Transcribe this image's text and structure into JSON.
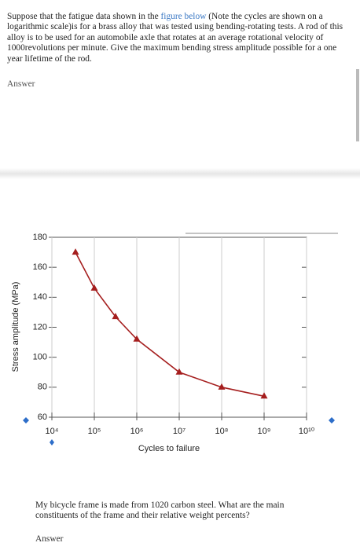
{
  "question1": {
    "before": "Suppose that the fatigue data shown in the ",
    "link": "figure below",
    "after": " (Note the cycles are shown on a logarithmic scale)is for a brass alloy that was tested using bending-rotating tests.  A rod of this alloy is to be used for an automobile axle that rotates at an average rotational velocity of 1000revolutions per minute.  Give the maximum bending stress amplitude possible for a one year lifetime of the rod.",
    "answer": "Answer"
  },
  "chart_data": {
    "type": "line",
    "x_label": "Cycles to failure",
    "y_label": "Stress amplitude (MPa)",
    "x": [
      36000,
      100000,
      316000,
      1000000,
      10000000,
      100000000,
      1000000000
    ],
    "values": [
      170,
      146,
      127,
      112,
      90,
      80,
      74
    ],
    "color": "#a51e1e",
    "xscale": "log",
    "grid": true,
    "xlim": [
      10000,
      10000000000
    ],
    "xticks": [
      {
        "value": 10000,
        "label": "10⁴"
      },
      {
        "value": 100000,
        "label": "10⁵"
      },
      {
        "value": 1000000,
        "label": "10⁶"
      },
      {
        "value": 10000000,
        "label": "10⁷"
      },
      {
        "value": 100000000,
        "label": "10⁸"
      },
      {
        "value": 1000000000,
        "label": "10⁹"
      },
      {
        "value": 10000000000,
        "label": "10¹⁰"
      }
    ],
    "ylim": [
      60,
      180
    ],
    "yticks": [
      60,
      80,
      100,
      120,
      140,
      160,
      180
    ]
  },
  "question2": {
    "text": "My bicycle frame is made from 1020 carbon steel. What are the main constituents of the frame and their relative weight percents?",
    "answer": "Answer"
  }
}
